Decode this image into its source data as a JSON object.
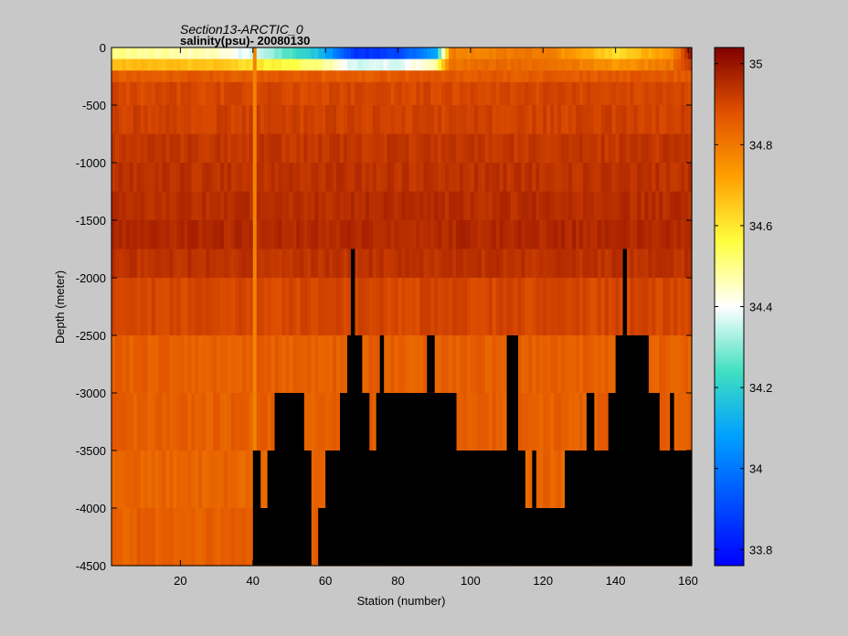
{
  "chart_data": {
    "type": "heatmap",
    "title": "Section13-ARCTIC_0",
    "subtitle": "salinity(psu)- 20080130",
    "xlabel": "Station (number)",
    "ylabel": "Depth (meter)",
    "xlim": [
      1,
      161
    ],
    "ylim": [
      -4500,
      0
    ],
    "xticks": [
      20,
      40,
      60,
      80,
      100,
      120,
      140,
      160
    ],
    "yticks": [
      0,
      -500,
      -1000,
      -1500,
      -2000,
      -2500,
      -3000,
      -3500,
      -4000,
      -4500
    ],
    "colorbar": {
      "range": [
        33.76,
        35.04
      ],
      "ticks": [
        33.8,
        34,
        34.2,
        34.4,
        34.6,
        34.8,
        35
      ]
    },
    "depth_levels": [
      0,
      -100,
      -200,
      -300,
      -500,
      -750,
      -1000,
      -1250,
      -1500,
      -1750,
      -2000,
      -2500,
      -3000,
      -3500,
      -4000,
      -4500
    ],
    "layer_salinity": [
      34.46,
      34.6,
      34.86,
      34.9,
      34.91,
      34.93,
      34.94,
      34.95,
      34.96,
      34.94,
      34.9,
      34.85,
      34.85,
      34.84,
      34.85
    ],
    "surface_feature": [
      {
        "station": 1,
        "salinity": 34.5
      },
      {
        "station": 30,
        "salinity": 34.45
      },
      {
        "station": 45,
        "salinity": 34.3
      },
      {
        "station": 58,
        "salinity": 34.15
      },
      {
        "station": 68,
        "salinity": 33.85
      },
      {
        "station": 80,
        "salinity": 33.9
      },
      {
        "station": 90,
        "salinity": 34.1
      },
      {
        "station": 94,
        "salinity": 34.78
      },
      {
        "station": 120,
        "salinity": 34.8
      },
      {
        "station": 140,
        "salinity": 34.62
      },
      {
        "station": 155,
        "salinity": 34.75
      },
      {
        "station": 161,
        "salinity": 35.02
      }
    ],
    "seafloor_depth": [
      {
        "from": 1,
        "to": 40,
        "depth": -4500
      },
      {
        "from": 40,
        "to": 42,
        "depth": -3500
      },
      {
        "from": 42,
        "to": 44,
        "depth": -4000
      },
      {
        "from": 44,
        "to": 46,
        "depth": -3500
      },
      {
        "from": 46,
        "to": 54,
        "depth": -3000
      },
      {
        "from": 54,
        "to": 56,
        "depth": -3500
      },
      {
        "from": 56,
        "to": 58,
        "depth": -4500
      },
      {
        "from": 58,
        "to": 60,
        "depth": -4000
      },
      {
        "from": 60,
        "to": 64,
        "depth": -3500
      },
      {
        "from": 64,
        "to": 66,
        "depth": -3000
      },
      {
        "from": 66,
        "to": 67,
        "depth": -2500
      },
      {
        "from": 67,
        "to": 68,
        "depth": -1750
      },
      {
        "from": 68,
        "to": 70,
        "depth": -2500
      },
      {
        "from": 70,
        "to": 72,
        "depth": -3000
      },
      {
        "from": 72,
        "to": 74,
        "depth": -3500
      },
      {
        "from": 74,
        "to": 75,
        "depth": -3000
      },
      {
        "from": 75,
        "to": 76,
        "depth": -2500
      },
      {
        "from": 76,
        "to": 88,
        "depth": -3000
      },
      {
        "from": 88,
        "to": 90,
        "depth": -2500
      },
      {
        "from": 90,
        "to": 96,
        "depth": -3000
      },
      {
        "from": 96,
        "to": 110,
        "depth": -3500
      },
      {
        "from": 110,
        "to": 113,
        "depth": -2500
      },
      {
        "from": 113,
        "to": 115,
        "depth": -3500
      },
      {
        "from": 115,
        "to": 117,
        "depth": -4000
      },
      {
        "from": 117,
        "to": 118,
        "depth": -3500
      },
      {
        "from": 118,
        "to": 126,
        "depth": -4000
      },
      {
        "from": 126,
        "to": 132,
        "depth": -3500
      },
      {
        "from": 132,
        "to": 134,
        "depth": -3000
      },
      {
        "from": 134,
        "to": 138,
        "depth": -3500
      },
      {
        "from": 138,
        "to": 140,
        "depth": -3000
      },
      {
        "from": 140,
        "to": 142,
        "depth": -2500
      },
      {
        "from": 142,
        "to": 143,
        "depth": -1750
      },
      {
        "from": 143,
        "to": 149,
        "depth": -2500
      },
      {
        "from": 149,
        "to": 152,
        "depth": -3000
      },
      {
        "from": 152,
        "to": 155,
        "depth": -3500
      },
      {
        "from": 155,
        "to": 156,
        "depth": -3000
      },
      {
        "from": 156,
        "to": 161,
        "depth": -3500
      }
    ]
  }
}
